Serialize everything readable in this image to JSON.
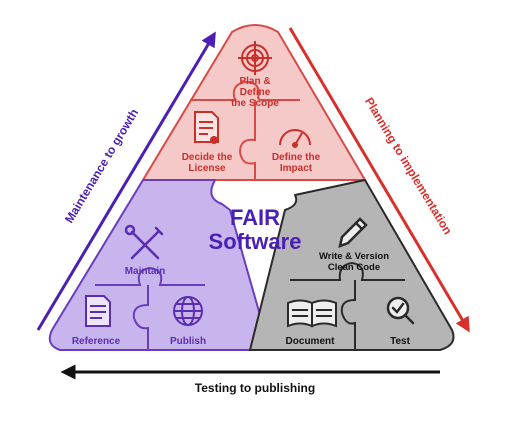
{
  "center": {
    "line1": "FAIR",
    "line2": "Software"
  },
  "arrows": {
    "left": "Maintenance to growth",
    "right": "Planning to implementation",
    "bottom": "Testing to publishing"
  },
  "top_section": {
    "plan_line1": "Plan &",
    "plan_line2": "Define",
    "plan_line3": "the Scope",
    "license_line1": "Decide the",
    "license_line2": "License",
    "impact_line1": "Define the",
    "impact_line2": "Impact"
  },
  "left_section": {
    "maintain": "Maintain",
    "reference": "Reference",
    "publish": "Publish"
  },
  "right_section": {
    "write_line1": "Write & Version",
    "write_line2": "Clean Code",
    "document": "Document",
    "test": "Test"
  },
  "colors": {
    "top_fill": "#f6c9c9",
    "top_text": "#c9302c",
    "top_stroke": "#d94a46",
    "left_fill": "#c9b5ee",
    "left_text": "#5b2eb0",
    "left_stroke": "#6a3dbf",
    "right_fill": "#b5b5b5",
    "right_dark": "#2a2a2a",
    "left_arrow": "#4a1fb5",
    "right_arrow": "#d8302c",
    "bottom_arrow": "#111111"
  }
}
